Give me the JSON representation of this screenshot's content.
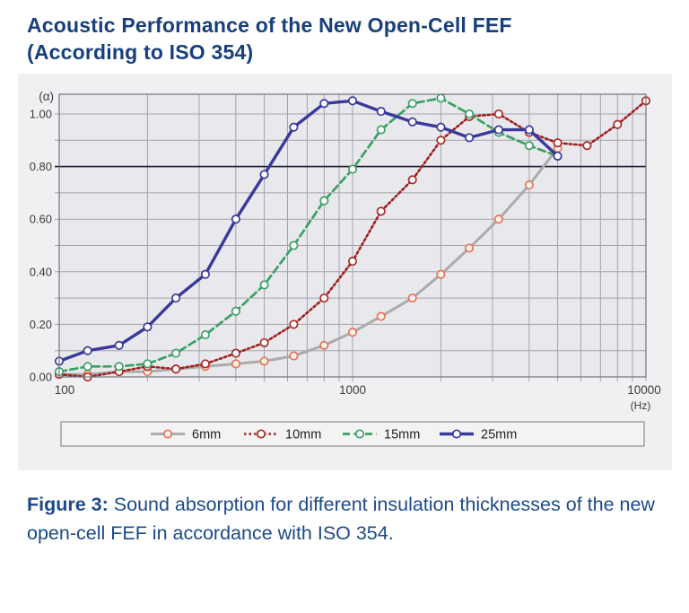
{
  "title": {
    "line1": "Acoustic Performance of the New Open-Cell FEF",
    "line2": "(According to ISO 354)"
  },
  "caption": {
    "label": "Figure 3:",
    "text": " Sound absorption for different insulation thicknesses of the new open-cell FEF in accordance with ISO 354."
  },
  "colors": {
    "title_blue": "#183f7c",
    "caption_blue": "#1c4a87",
    "panel_bg": "#f0f0f2",
    "plot_bg": "#e9e9ed",
    "grid": "#a2a2aa",
    "plot_border": "#73737b",
    "reference_line": "#1d1d35",
    "axis_text": "#3c3c3c",
    "legend_bg": "#f3f3f4",
    "legend_border": "#8a8a90",
    "legend_text": "#222222"
  },
  "chart_data": {
    "type": "line",
    "title": "",
    "x_axis": {
      "label": "(Hz)",
      "scale": "log",
      "min": 100,
      "max": 10000,
      "tick_labels": [
        "100",
        "1000",
        "10000"
      ],
      "grid": true
    },
    "y_axis": {
      "label": "(α)",
      "min": 0.0,
      "max": 1.075,
      "minor_grid_step": 0.1,
      "tick_labels": [
        "0.00",
        "0.20",
        "0.40",
        "0.60",
        "0.80",
        "1.00"
      ],
      "tick_values": [
        0,
        0.2,
        0.4,
        0.6,
        0.8,
        1.0
      ],
      "reference_line": 0.8,
      "grid": true
    },
    "legend_position": "bottom",
    "frequencies": [
      100,
      125,
      160,
      200,
      250,
      315,
      400,
      500,
      630,
      800,
      1000,
      1250,
      1600,
      2000,
      2500,
      3150,
      4000,
      5000,
      6300,
      8000,
      10000
    ],
    "series": [
      {
        "name": "6mm",
        "color": "#ababab",
        "marker_color": "#e57358",
        "marker_fill": "#fcf2e9",
        "style": "solid",
        "line_width": 3,
        "values": [
          0.01,
          0.01,
          0.02,
          0.02,
          0.03,
          0.04,
          0.05,
          0.06,
          0.08,
          0.12,
          0.17,
          0.23,
          0.3,
          0.39,
          0.49,
          0.6,
          0.73,
          0.87,
          null,
          null,
          null
        ]
      },
      {
        "name": "10mm",
        "color": "#9e2020",
        "marker_color": "#a82a24",
        "marker_fill": "#ffffff",
        "style": "dotted",
        "line_width": 2.6,
        "values": [
          0.01,
          0.0,
          0.02,
          0.04,
          0.03,
          0.05,
          0.09,
          0.13,
          0.2,
          0.3,
          0.44,
          0.63,
          0.75,
          0.9,
          0.99,
          1.0,
          0.93,
          0.89,
          0.88,
          0.96,
          1.05
        ]
      },
      {
        "name": "15mm",
        "color": "#3aa065",
        "marker_color": "#3aa065",
        "marker_fill": "#ffffff",
        "style": "dashed",
        "line_width": 2.7,
        "values": [
          0.02,
          0.04,
          0.04,
          0.05,
          0.09,
          0.16,
          0.25,
          0.35,
          0.5,
          0.67,
          0.79,
          0.94,
          1.04,
          1.06,
          1.0,
          0.93,
          0.88,
          0.84,
          null,
          null,
          null
        ]
      },
      {
        "name": "25mm",
        "color": "#39399b",
        "marker_color": "#39399b",
        "marker_fill": "#ffffff",
        "style": "solid",
        "line_width": 3.4,
        "values": [
          0.06,
          0.1,
          0.12,
          0.19,
          0.3,
          0.39,
          0.6,
          0.77,
          0.95,
          1.04,
          1.05,
          1.01,
          0.97,
          0.95,
          0.91,
          0.94,
          0.94,
          0.84,
          null,
          null,
          null
        ]
      }
    ]
  }
}
